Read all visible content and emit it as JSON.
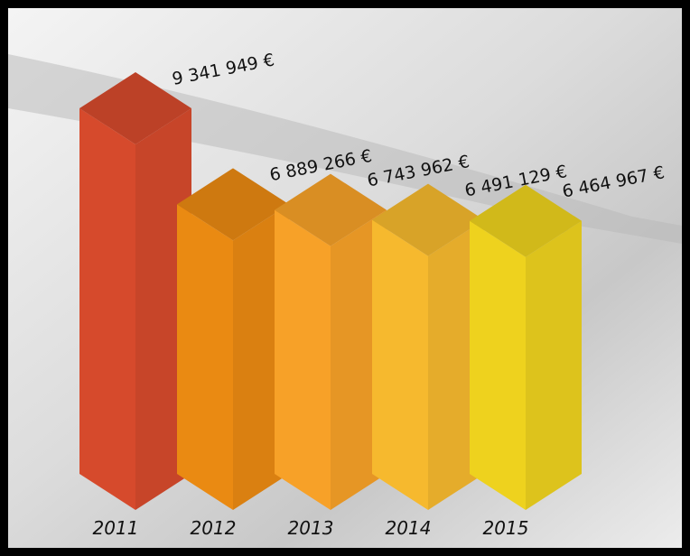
{
  "chart_data": {
    "type": "bar3d",
    "categories": [
      "2011",
      "2012",
      "2013",
      "2014",
      "2015"
    ],
    "values": [
      9341949,
      6889266,
      6743962,
      6491129,
      6464967
    ],
    "value_labels": [
      "9 341 949 €",
      "6 889 266 €",
      "6 743 962 €",
      "6 491 129 €",
      "6 464 967 €"
    ],
    "colors": [
      "#d64a2c",
      "#ea8a12",
      "#f7a128",
      "#f6b92e",
      "#eed21e"
    ]
  }
}
